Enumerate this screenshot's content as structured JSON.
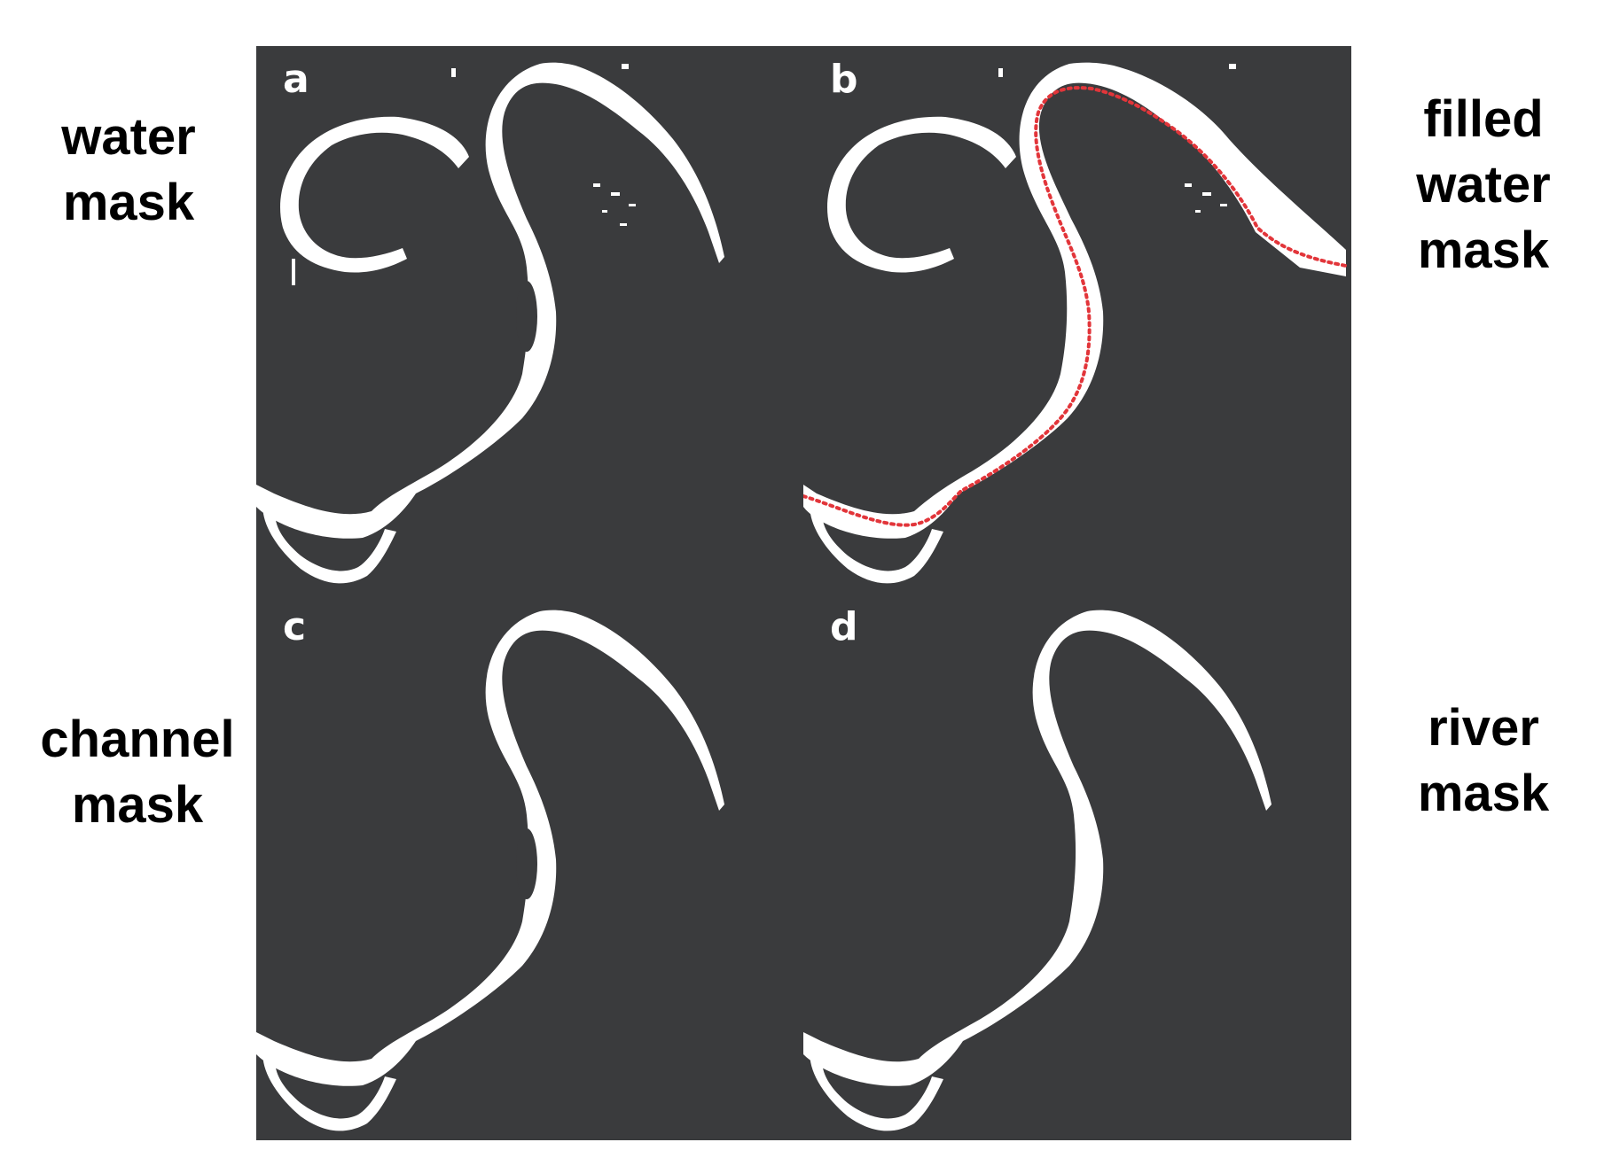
{
  "labels": {
    "a": [
      "water",
      "mask"
    ],
    "b": [
      "filled",
      "water",
      "mask"
    ],
    "c": [
      "channel",
      "mask"
    ],
    "d": [
      "river",
      "mask"
    ]
  },
  "panels": [
    {
      "letter": "a"
    },
    {
      "letter": "b"
    },
    {
      "letter": "c"
    },
    {
      "letter": "d"
    }
  ],
  "colors": {
    "background": "#3a3b3d",
    "water": "#ffffff",
    "centerline": "#e2353a"
  }
}
